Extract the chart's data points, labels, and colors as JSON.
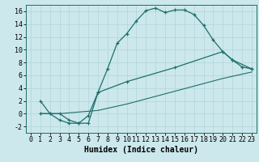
{
  "xlabel": "Humidex (Indice chaleur)",
  "bg_color": "#cce8ec",
  "line_color": "#1e6e6a",
  "grid_color": "#b0d4d8",
  "xlim": [
    -0.5,
    23.5
  ],
  "ylim": [
    -3,
    17
  ],
  "xticks": [
    0,
    1,
    2,
    3,
    4,
    5,
    6,
    7,
    8,
    9,
    10,
    11,
    12,
    13,
    14,
    15,
    16,
    17,
    18,
    19,
    20,
    21,
    22,
    23
  ],
  "yticks": [
    -2,
    0,
    2,
    4,
    6,
    8,
    10,
    12,
    14,
    16
  ],
  "curve1_x": [
    1,
    2,
    3,
    4,
    5,
    6,
    7,
    8,
    9,
    10,
    11,
    12,
    13,
    14,
    15,
    16,
    17,
    18,
    19,
    20,
    21,
    22,
    23
  ],
  "curve1_y": [
    0,
    0,
    -1,
    -1.5,
    -1.5,
    -0.3,
    3.3,
    7.0,
    11.0,
    12.5,
    14.5,
    16.1,
    16.5,
    15.8,
    16.2,
    16.2,
    15.5,
    13.8,
    11.5,
    9.7,
    8.4,
    7.3,
    7.0
  ],
  "curve2_x": [
    1,
    2,
    3,
    4,
    5,
    6,
    7,
    10,
    15,
    20,
    21,
    23
  ],
  "curve2_y": [
    2,
    0,
    0,
    -1,
    -1.5,
    -1.5,
    3.3,
    5.0,
    7.2,
    9.7,
    8.4,
    7.0
  ],
  "curve3_x": [
    1,
    3,
    7,
    10,
    15,
    20,
    23
  ],
  "curve3_y": [
    0,
    0,
    0.5,
    1.5,
    3.5,
    5.5,
    6.5
  ],
  "xlabel_fontsize": 7,
  "tick_fontsize": 6
}
